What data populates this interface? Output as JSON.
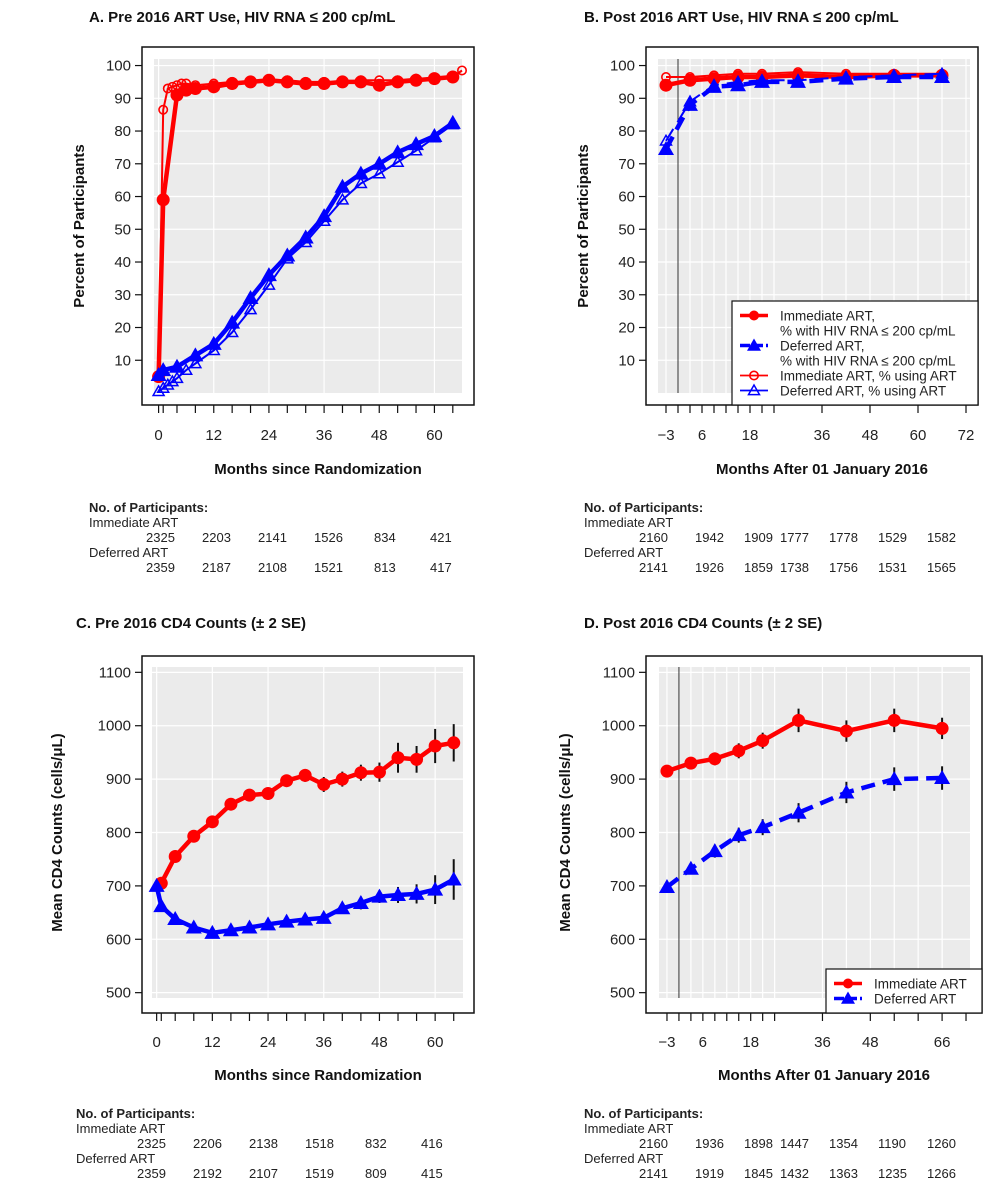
{
  "chart_data": [
    {
      "id": "A",
      "type": "line",
      "title": "A.  Pre 2016 ART Use, HIV RNA ≤ 200 cp/mL",
      "xlabel": "Months since Randomization",
      "ylabel": "Percent of Participants",
      "xlim": [
        -1,
        66
      ],
      "ylim": [
        0,
        102
      ],
      "xticks_labeled": [
        0,
        12,
        24,
        36,
        48,
        60
      ],
      "xticks_minor": [
        1,
        4,
        8,
        16,
        20,
        28,
        32,
        40,
        44,
        52,
        56,
        64
      ],
      "yticks": [
        10,
        20,
        30,
        40,
        50,
        60,
        70,
        80,
        90,
        100
      ],
      "grid": true,
      "legend": null,
      "series": [
        {
          "name": "Immediate ART, % with HIV RNA ≤ 200 cp/mL",
          "color": "#ff0000",
          "marker": "filled-circle",
          "dash": "solid",
          "x": [
            0,
            1,
            4,
            6,
            8,
            12,
            16,
            20,
            24,
            28,
            32,
            36,
            40,
            44,
            48,
            52,
            56,
            60,
            64
          ],
          "y": [
            5,
            59,
            91,
            92.5,
            93,
            93.5,
            94.5,
            95,
            95.5,
            95,
            94.5,
            94.5,
            95,
            95,
            94,
            95,
            95.5,
            96,
            96.5
          ]
        },
        {
          "name": "Immediate ART, % using ART",
          "color": "#ff0000",
          "marker": "open-circle",
          "dash": "solid",
          "x": [
            0,
            1,
            2,
            3,
            4,
            5,
            6,
            8,
            12,
            16,
            20,
            24,
            28,
            32,
            36,
            40,
            44,
            48,
            52,
            56,
            60,
            64,
            66
          ],
          "y": [
            5,
            86.5,
            93,
            93.5,
            94,
            94.5,
            94.5,
            94,
            94.5,
            95,
            95,
            95.5,
            95.5,
            95,
            95,
            95,
            95.5,
            95.5,
            95.5,
            96,
            96,
            96.5,
            98.5
          ]
        },
        {
          "name": "Deferred ART, % with HIV RNA ≤ 200 cp/mL",
          "color": "#0000ff",
          "marker": "filled-triangle",
          "dash": "solid",
          "x": [
            0,
            1,
            4,
            8,
            12,
            16,
            20,
            24,
            28,
            32,
            36,
            40,
            44,
            48,
            52,
            56,
            60,
            64
          ],
          "y": [
            5.5,
            7,
            8,
            11.5,
            15,
            21.5,
            29,
            36,
            42,
            47.5,
            54,
            63,
            67,
            70,
            73.5,
            76,
            78.5,
            82.5
          ]
        },
        {
          "name": "Deferred ART, % using ART",
          "color": "#0000ff",
          "marker": "open-triangle",
          "dash": "solid",
          "x": [
            0,
            1,
            2,
            3,
            4,
            6,
            8,
            12,
            16,
            20,
            24,
            28,
            32,
            36,
            40,
            44,
            48,
            52,
            56,
            60,
            64
          ],
          "y": [
            0.5,
            1.5,
            2.5,
            3.5,
            4.5,
            7,
            9,
            13,
            18.5,
            25.5,
            33,
            41,
            46,
            52.5,
            59,
            64,
            67,
            70.5,
            74,
            78,
            82
          ]
        }
      ]
    },
    {
      "id": "B",
      "type": "line",
      "title": "B.  Post 2016 ART Use, HIV RNA ≤ 200 cp/mL",
      "xlabel": "Months After 01 January 2016",
      "ylabel": "Percent of Participants",
      "xlim": [
        -5,
        73
      ],
      "ylim": [
        0,
        102
      ],
      "xticks_labeled": [
        -3,
        6,
        18,
        36,
        48,
        60,
        72
      ],
      "xticks_minor": [
        0,
        3,
        9,
        12,
        15,
        21,
        24
      ],
      "yticks": [
        10,
        20,
        30,
        40,
        50,
        60,
        70,
        80,
        90,
        100
      ],
      "vline_x": 0,
      "grid": true,
      "legend": {
        "position": "bottom-right",
        "entries": [
          {
            "line1": "Immediate ART,",
            "line2": "% with HIV RNA ≤ 200 cp/mL",
            "color": "#ff0000",
            "marker": "filled-circle",
            "dash": "solid"
          },
          {
            "line1": "Deferred ART,",
            "line2": "% with HIV RNA ≤ 200 cp/mL",
            "color": "#0000ff",
            "marker": "filled-triangle",
            "dash": "dashed"
          },
          {
            "line1": "Immediate ART, % using ART",
            "line2": "",
            "color": "#ff0000",
            "marker": "open-circle",
            "dash": "solid"
          },
          {
            "line1": "Deferred ART, % using ART",
            "line2": "",
            "color": "#0000ff",
            "marker": "open-triangle",
            "dash": "dashed"
          }
        ]
      },
      "series": [
        {
          "name": "Immediate ART, % with HIV RNA ≤ 200 cp/mL",
          "color": "#ff0000",
          "marker": "filled-circle",
          "dash": "solid",
          "x": [
            -3,
            3,
            9,
            15,
            21,
            30,
            42,
            54,
            66
          ],
          "y": [
            94,
            95.5,
            96,
            96.5,
            96.5,
            97,
            96.5,
            97,
            97
          ]
        },
        {
          "name": "Immediate ART, % using ART",
          "color": "#ff0000",
          "marker": "open-circle",
          "dash": "solid",
          "x": [
            -3,
            3,
            9,
            15,
            21,
            30,
            42,
            54,
            66
          ],
          "y": [
            96.5,
            96.5,
            97,
            97.5,
            97.5,
            98,
            97.5,
            97.5,
            97.5
          ]
        },
        {
          "name": "Deferred ART, % with HIV RNA ≤ 200 cp/mL",
          "color": "#0000ff",
          "marker": "filled-triangle",
          "dash": "dashed",
          "x": [
            -3,
            3,
            9,
            15,
            21,
            30,
            42,
            54,
            66
          ],
          "y": [
            74.5,
            88,
            93.5,
            94,
            95,
            95,
            96,
            96.5,
            96.5
          ]
        },
        {
          "name": "Deferred ART, % using ART",
          "color": "#0000ff",
          "marker": "open-triangle",
          "dash": "dashed",
          "x": [
            -3,
            3,
            9,
            15,
            21,
            30,
            42,
            54,
            66
          ],
          "y": [
            77,
            89,
            94,
            95,
            95.5,
            95.5,
            96.5,
            97,
            97.5
          ]
        }
      ]
    },
    {
      "id": "C",
      "type": "line",
      "title": "C.  Pre 2016 CD4 Counts (± 2 SE)",
      "xlabel": "Months since Randomization",
      "ylabel": "Mean CD4 Counts (cells/μL)",
      "xlim": [
        -1,
        66
      ],
      "ylim": [
        490,
        1110
      ],
      "xticks_labeled": [
        0,
        12,
        24,
        36,
        48,
        60
      ],
      "xticks_minor": [
        1,
        4,
        8,
        16,
        20,
        28,
        32,
        40,
        44,
        52,
        56,
        64
      ],
      "yticks": [
        500,
        600,
        700,
        800,
        900,
        1000,
        1100
      ],
      "grid": true,
      "legend": null,
      "series": [
        {
          "name": "Immediate ART",
          "color": "#ff0000",
          "marker": "filled-circle",
          "dash": "solid",
          "x": [
            1,
            4,
            8,
            12,
            16,
            20,
            24,
            28,
            32,
            36,
            40,
            44,
            48,
            52,
            56,
            60,
            64
          ],
          "y": [
            705,
            755,
            793,
            820,
            853,
            870,
            873,
            897,
            907,
            890,
            900,
            912,
            913,
            940,
            937,
            962,
            968
          ],
          "se2": [
            8,
            8,
            8,
            8,
            9,
            9,
            10,
            11,
            12,
            14,
            14,
            15,
            18,
            28,
            25,
            32,
            35
          ]
        },
        {
          "name": "Deferred ART",
          "color": "#0000ff",
          "marker": "filled-triangle",
          "dash": "solid",
          "x": [
            0,
            1,
            4,
            8,
            12,
            16,
            20,
            24,
            28,
            32,
            36,
            40,
            44,
            48,
            52,
            56,
            60,
            64
          ],
          "y": [
            700,
            662,
            638,
            622,
            612,
            617,
            622,
            628,
            633,
            637,
            640,
            658,
            668,
            680,
            683,
            685,
            693,
            712
          ],
          "se2": [
            5,
            6,
            6,
            6,
            7,
            7,
            7,
            8,
            8,
            9,
            10,
            10,
            12,
            12,
            15,
            18,
            27,
            38
          ]
        }
      ]
    },
    {
      "id": "D",
      "type": "line",
      "title": "D.  Post 2016 CD4 Counts (± 2 SE)",
      "xlabel": "Months After 01 January 2016",
      "ylabel": "Mean CD4 Counts (cells/μL)",
      "xlim": [
        -5,
        73
      ],
      "ylim": [
        490,
        1110
      ],
      "xticks_labeled": [
        -3,
        6,
        18,
        36,
        48,
        66
      ],
      "xticks_minor": [
        0,
        3,
        9,
        12,
        15,
        21,
        24,
        54,
        60,
        72
      ],
      "yticks": [
        500,
        600,
        700,
        800,
        900,
        1000,
        1100
      ],
      "vline_x": 0,
      "grid": true,
      "legend": {
        "position": "bottom-right",
        "entries": [
          {
            "line1": "Immediate ART",
            "line2": "",
            "color": "#ff0000",
            "marker": "filled-circle",
            "dash": "solid"
          },
          {
            "line1": "Deferred ART",
            "line2": "",
            "color": "#0000ff",
            "marker": "filled-triangle",
            "dash": "dashed"
          }
        ]
      },
      "series": [
        {
          "name": "Immediate ART",
          "color": "#ff0000",
          "marker": "filled-circle",
          "dash": "solid",
          "x": [
            -3,
            3,
            9,
            15,
            21,
            30,
            42,
            54,
            66
          ],
          "y": [
            915,
            930,
            938,
            953,
            972,
            1010,
            990,
            1010,
            995
          ],
          "se2": [
            8,
            10,
            12,
            14,
            15,
            22,
            20,
            22,
            20
          ]
        },
        {
          "name": "Deferred ART",
          "color": "#0000ff",
          "marker": "filled-triangle",
          "dash": "dashed",
          "x": [
            -3,
            3,
            9,
            15,
            21,
            30,
            42,
            54,
            66
          ],
          "y": [
            698,
            732,
            765,
            795,
            810,
            837,
            875,
            900,
            902
          ],
          "se2": [
            8,
            10,
            12,
            14,
            15,
            18,
            20,
            22,
            22
          ]
        }
      ]
    }
  ],
  "participants": {
    "A": {
      "heading": "No. of Participants:",
      "group1": "Immediate ART",
      "values1": [
        "2325",
        "2203",
        "2141",
        "1526",
        "834",
        "421"
      ],
      "group2": "Deferred ART",
      "values2": [
        "2359",
        "2187",
        "2108",
        "1521",
        "813",
        "417"
      ]
    },
    "B": {
      "heading": "No. of Participants:",
      "group1": "Immediate ART",
      "values1": [
        "2160",
        "1942",
        "1909",
        "1777",
        "1778",
        "1529",
        "1582"
      ],
      "group2": "Deferred ART",
      "values2": [
        "2141",
        "1926",
        "1859",
        "1738",
        "1756",
        "1531",
        "1565"
      ]
    },
    "C": {
      "heading": "No. of Participants:",
      "group1": "Immediate ART",
      "values1": [
        "2325",
        "2206",
        "2138",
        "1518",
        "832",
        "416"
      ],
      "group2": "Deferred ART",
      "values2": [
        "2359",
        "2192",
        "2107",
        "1519",
        "809",
        "415"
      ]
    },
    "D": {
      "heading": "No. of Participants:",
      "group1": "Immediate ART",
      "values1": [
        "2160",
        "1936",
        "1898",
        "1447",
        "1354",
        "1190",
        "1260"
      ],
      "group2": "Deferred ART",
      "values2": [
        "2141",
        "1919",
        "1845",
        "1432",
        "1363",
        "1235",
        "1266"
      ]
    }
  }
}
